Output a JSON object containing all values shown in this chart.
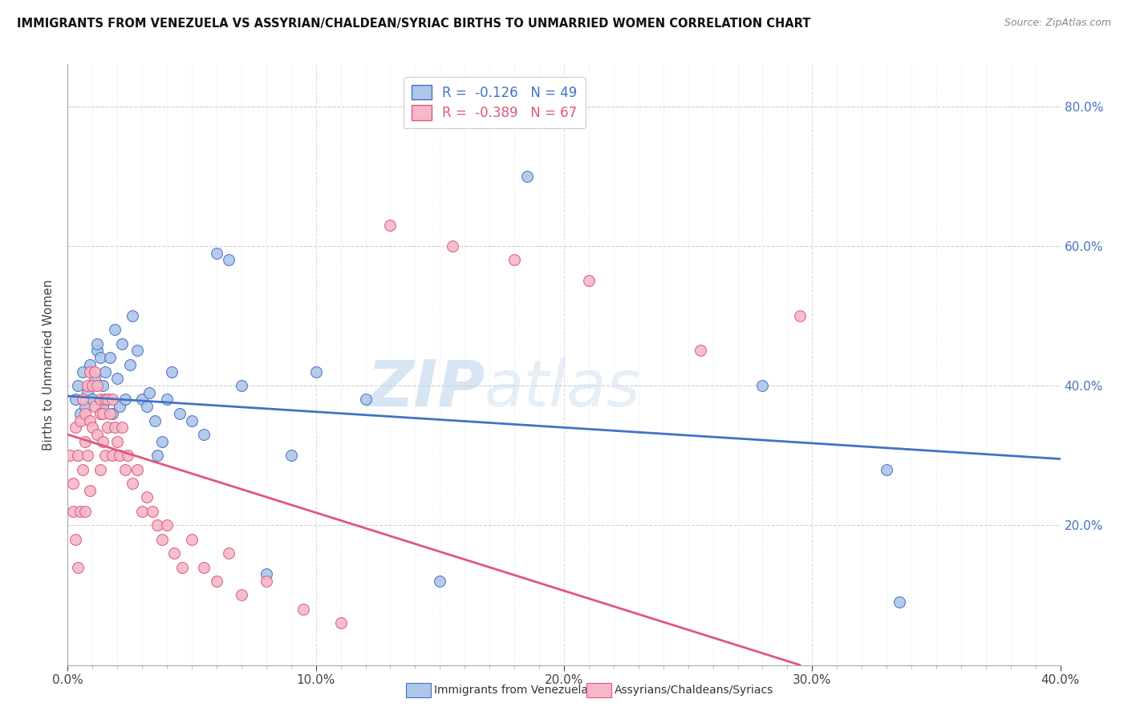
{
  "title": "IMMIGRANTS FROM VENEZUELA VS ASSYRIAN/CHALDEAN/SYRIAC BIRTHS TO UNMARRIED WOMEN CORRELATION CHART",
  "source": "Source: ZipAtlas.com",
  "xlabel_blue": "Immigrants from Venezuela",
  "xlabel_pink": "Assyrians/Chaldeans/Syriacs",
  "ylabel": "Births to Unmarried Women",
  "r_blue": -0.126,
  "n_blue": 49,
  "r_pink": -0.389,
  "n_pink": 67,
  "xlim": [
    0.0,
    0.4
  ],
  "ylim": [
    0.0,
    0.86
  ],
  "xticks_major": [
    0.0,
    0.1,
    0.2,
    0.3,
    0.4
  ],
  "xticks_minor": [
    0.01,
    0.02,
    0.03,
    0.04,
    0.05,
    0.06,
    0.07,
    0.08,
    0.09,
    0.11,
    0.12,
    0.13,
    0.14,
    0.15,
    0.16,
    0.17,
    0.18,
    0.19,
    0.21,
    0.22,
    0.23,
    0.24,
    0.25,
    0.26,
    0.27,
    0.28,
    0.29,
    0.31,
    0.32,
    0.33,
    0.34,
    0.35,
    0.36,
    0.37,
    0.38,
    0.39
  ],
  "yticks": [
    0.2,
    0.4,
    0.6,
    0.8
  ],
  "yticks_grid": [
    0.2,
    0.4,
    0.6,
    0.8
  ],
  "color_blue": "#aec6e8",
  "color_pink": "#f4b8c8",
  "line_color_blue": "#4472c4",
  "line_color_pink": "#e05878",
  "blue_x": [
    0.003,
    0.004,
    0.005,
    0.006,
    0.007,
    0.008,
    0.009,
    0.01,
    0.011,
    0.012,
    0.012,
    0.013,
    0.014,
    0.014,
    0.015,
    0.016,
    0.017,
    0.018,
    0.019,
    0.02,
    0.021,
    0.022,
    0.023,
    0.025,
    0.026,
    0.028,
    0.03,
    0.032,
    0.033,
    0.035,
    0.036,
    0.038,
    0.04,
    0.042,
    0.045,
    0.05,
    0.055,
    0.06,
    0.065,
    0.07,
    0.08,
    0.09,
    0.1,
    0.12,
    0.15,
    0.185,
    0.28,
    0.33,
    0.335
  ],
  "blue_y": [
    0.38,
    0.4,
    0.36,
    0.42,
    0.37,
    0.39,
    0.43,
    0.38,
    0.41,
    0.45,
    0.46,
    0.44,
    0.37,
    0.4,
    0.42,
    0.38,
    0.44,
    0.36,
    0.48,
    0.41,
    0.37,
    0.46,
    0.38,
    0.43,
    0.5,
    0.45,
    0.38,
    0.37,
    0.39,
    0.35,
    0.3,
    0.32,
    0.38,
    0.42,
    0.36,
    0.35,
    0.33,
    0.59,
    0.58,
    0.4,
    0.13,
    0.3,
    0.42,
    0.38,
    0.12,
    0.7,
    0.4,
    0.28,
    0.09
  ],
  "pink_x": [
    0.001,
    0.002,
    0.002,
    0.003,
    0.003,
    0.004,
    0.004,
    0.005,
    0.005,
    0.006,
    0.006,
    0.007,
    0.007,
    0.007,
    0.008,
    0.008,
    0.009,
    0.009,
    0.009,
    0.01,
    0.01,
    0.011,
    0.011,
    0.012,
    0.012,
    0.013,
    0.013,
    0.013,
    0.014,
    0.014,
    0.015,
    0.015,
    0.016,
    0.016,
    0.017,
    0.018,
    0.018,
    0.019,
    0.02,
    0.021,
    0.022,
    0.023,
    0.024,
    0.026,
    0.028,
    0.03,
    0.032,
    0.034,
    0.036,
    0.038,
    0.04,
    0.043,
    0.046,
    0.05,
    0.055,
    0.06,
    0.065,
    0.07,
    0.08,
    0.095,
    0.11,
    0.13,
    0.155,
    0.18,
    0.21,
    0.255,
    0.295
  ],
  "pink_y": [
    0.3,
    0.26,
    0.22,
    0.34,
    0.18,
    0.3,
    0.14,
    0.35,
    0.22,
    0.38,
    0.28,
    0.36,
    0.32,
    0.22,
    0.4,
    0.3,
    0.42,
    0.35,
    0.25,
    0.4,
    0.34,
    0.42,
    0.37,
    0.4,
    0.33,
    0.38,
    0.36,
    0.28,
    0.36,
    0.32,
    0.38,
    0.3,
    0.38,
    0.34,
    0.36,
    0.38,
    0.3,
    0.34,
    0.32,
    0.3,
    0.34,
    0.28,
    0.3,
    0.26,
    0.28,
    0.22,
    0.24,
    0.22,
    0.2,
    0.18,
    0.2,
    0.16,
    0.14,
    0.18,
    0.14,
    0.12,
    0.16,
    0.1,
    0.12,
    0.08,
    0.06,
    0.63,
    0.6,
    0.58,
    0.55,
    0.45,
    0.5
  ],
  "blue_trendline_x": [
    0.0,
    0.4
  ],
  "blue_trendline_y": [
    0.385,
    0.295
  ],
  "pink_trendline_x": [
    0.0,
    0.295
  ],
  "pink_trendline_y": [
    0.33,
    0.0
  ],
  "watermark_zip": "ZIP",
  "watermark_atlas": "atlas",
  "background_color": "#ffffff",
  "grid_color": "#d0d0d0"
}
